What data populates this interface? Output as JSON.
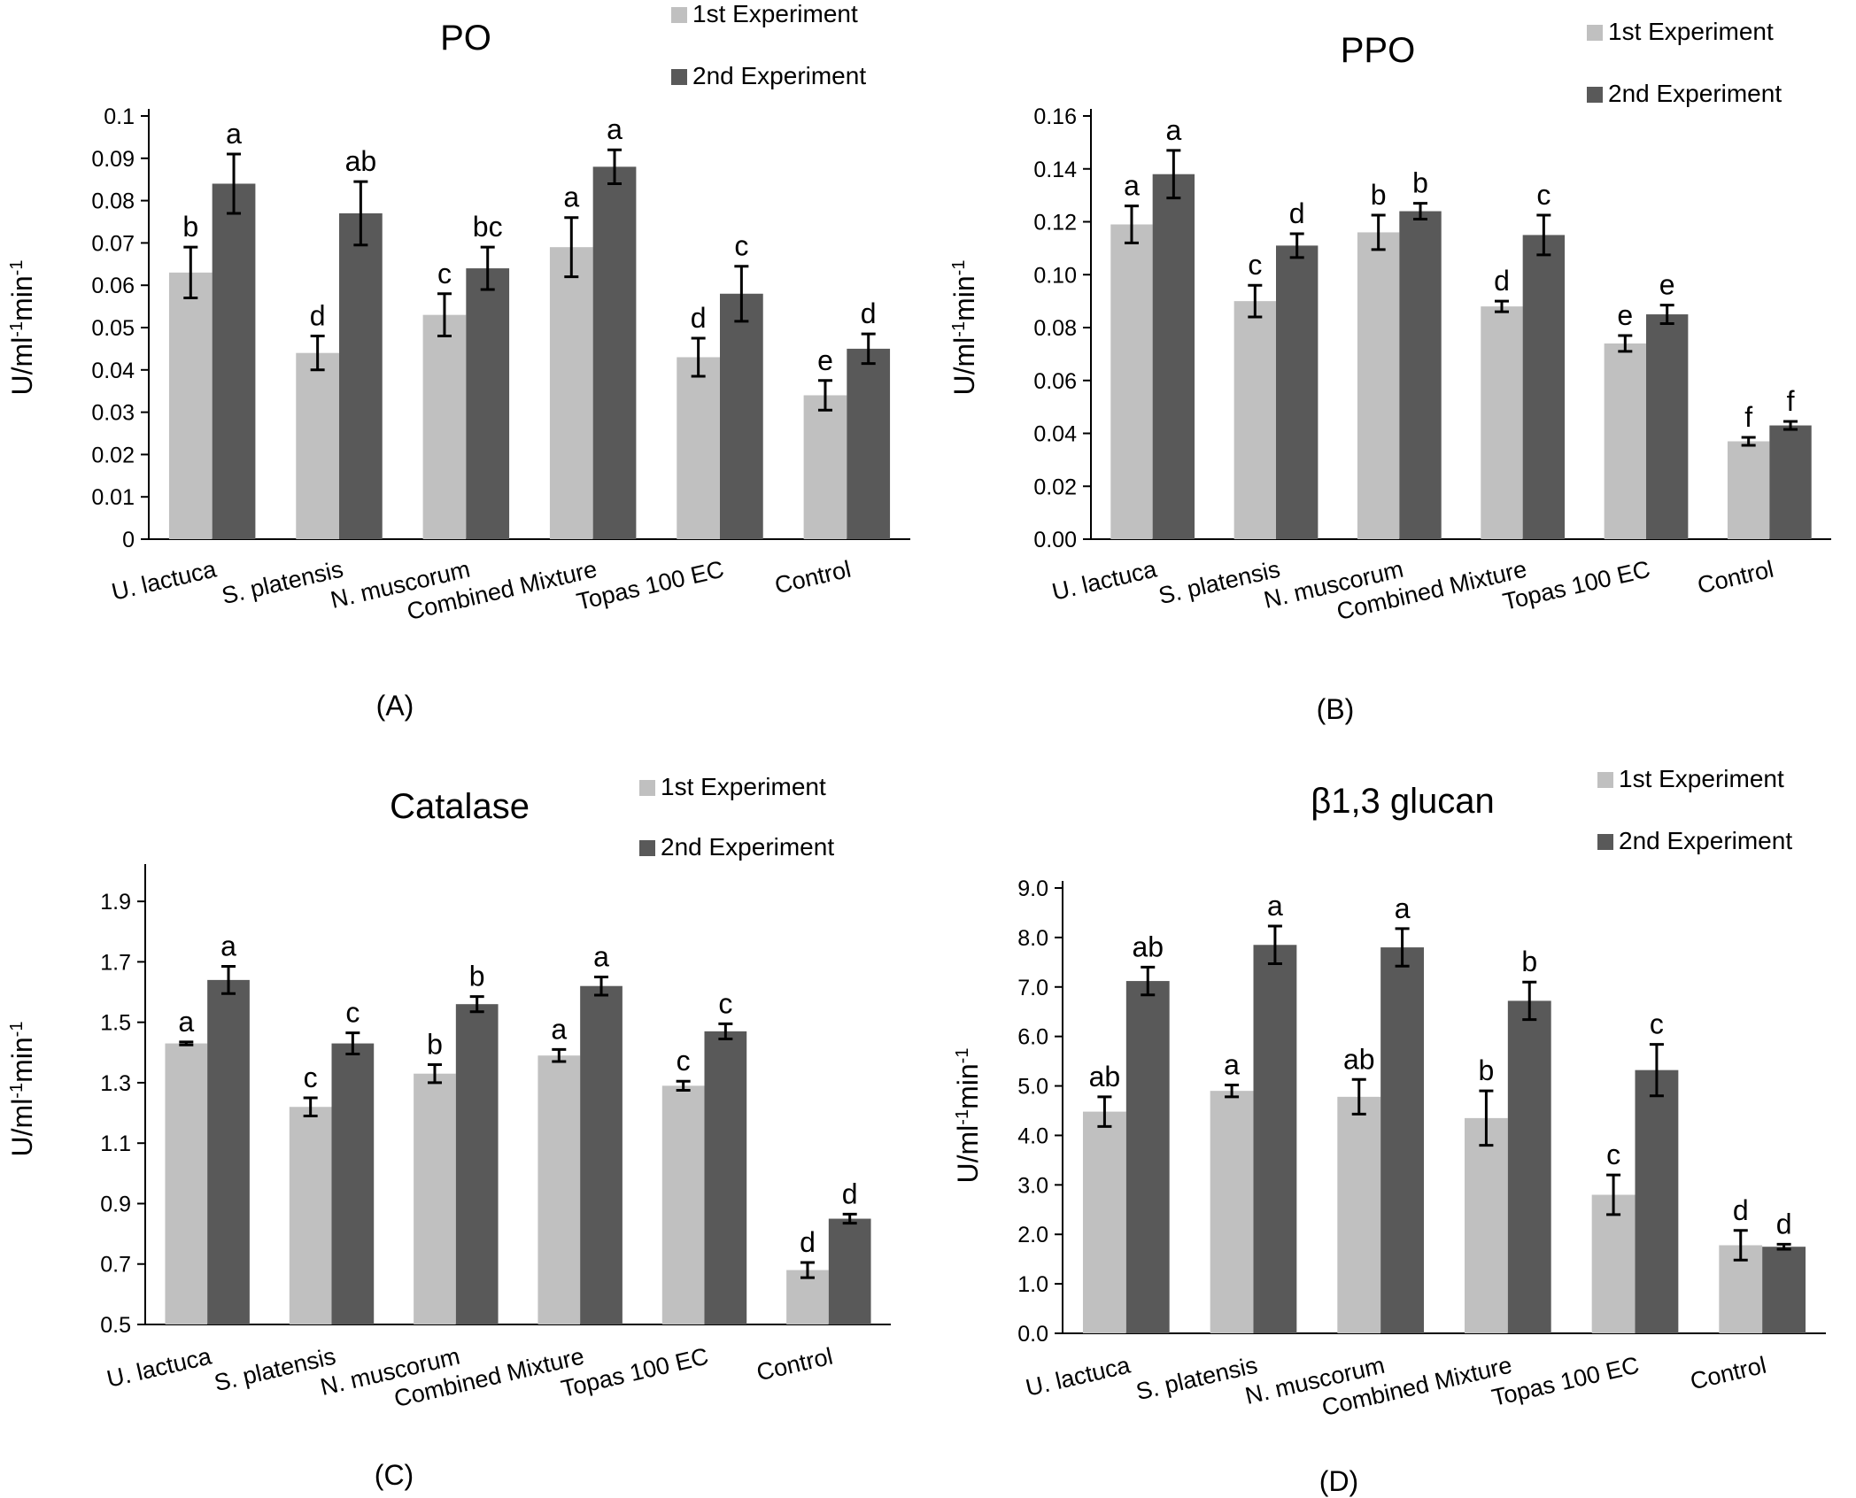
{
  "legend": {
    "series1": "1st Experiment",
    "series2": "2nd Experiment"
  },
  "colors": {
    "series1": "#c0c0c0",
    "series2": "#595959",
    "axis": "#000000"
  },
  "ylabel": {
    "base1": "U/ml",
    "sup1": "-1",
    "base2": "min",
    "sup2": "-1"
  },
  "chart_data": [
    {
      "type": "bar",
      "panel_label": "(A)",
      "title": "PO",
      "xlabel": "",
      "ylabel": "U/ml-1min-1",
      "categories": [
        "U. lactuca",
        "S. platensis",
        "N. muscorum",
        "Combined Mixture",
        "Topas 100 EC",
        "Control"
      ],
      "yticks": [
        "0",
        "0.01",
        "0.02",
        "0.03",
        "0.04",
        "0.05",
        "0.06",
        "0.07",
        "0.08",
        "0.09",
        "0.1"
      ],
      "ylim": [
        0,
        0.1
      ],
      "series": [
        {
          "name": "1st Experiment",
          "values": [
            0.063,
            0.044,
            0.053,
            0.069,
            0.043,
            0.034
          ],
          "errors": [
            0.006,
            0.004,
            0.005,
            0.007,
            0.0045,
            0.0035
          ],
          "letters": [
            "b",
            "d",
            "c",
            "a",
            "d",
            "e"
          ]
        },
        {
          "name": "2nd Experiment",
          "values": [
            0.084,
            0.077,
            0.064,
            0.088,
            0.058,
            0.045
          ],
          "errors": [
            0.007,
            0.0075,
            0.005,
            0.004,
            0.0065,
            0.0035
          ],
          "letters": [
            "a",
            "ab",
            "bc",
            "a",
            "c",
            "d"
          ]
        }
      ]
    },
    {
      "type": "bar",
      "panel_label": "(B)",
      "title": "PPO",
      "xlabel": "",
      "ylabel": "U/ml-1min-1",
      "categories": [
        "U. lactuca",
        "S. platensis",
        "N. muscorum",
        "Combined Mixture",
        "Topas 100 EC",
        "Control"
      ],
      "yticks": [
        "0.00",
        "0.02",
        "0.04",
        "0.06",
        "0.08",
        "0.10",
        "0.12",
        "0.14",
        "0.16"
      ],
      "ylim": [
        0,
        0.16
      ],
      "series": [
        {
          "name": "1st Experiment",
          "values": [
            0.119,
            0.09,
            0.116,
            0.088,
            0.074,
            0.037
          ],
          "errors": [
            0.007,
            0.006,
            0.0065,
            0.002,
            0.003,
            0.0015
          ],
          "letters": [
            "a",
            "c",
            "b",
            "d",
            "e",
            "f"
          ]
        },
        {
          "name": "2nd Experiment",
          "values": [
            0.138,
            0.111,
            0.124,
            0.115,
            0.085,
            0.043
          ],
          "errors": [
            0.009,
            0.0045,
            0.003,
            0.0075,
            0.0035,
            0.0015
          ],
          "letters": [
            "a",
            "d",
            "b",
            "c",
            "e",
            "f"
          ]
        }
      ]
    },
    {
      "type": "bar",
      "panel_label": "(C)",
      "title": "Catalase",
      "xlabel": "",
      "ylabel": "U/ml-1min-1",
      "categories": [
        "U. lactuca",
        "S. platensis",
        "N. muscorum",
        "Combined Mixture",
        "Topas 100 EC",
        "Control"
      ],
      "yticks": [
        "0.5",
        "0.7",
        "0.9",
        "1.1",
        "1.3",
        "1.5",
        "1.7",
        "1.9"
      ],
      "ylim": [
        0.5,
        2.0
      ],
      "series": [
        {
          "name": "1st Experiment",
          "values": [
            1.43,
            1.22,
            1.33,
            1.39,
            1.29,
            0.68
          ],
          "errors": [
            0.005,
            0.03,
            0.03,
            0.02,
            0.015,
            0.025
          ],
          "letters": [
            "a",
            "c",
            "b",
            "a",
            "c",
            "d"
          ]
        },
        {
          "name": "2nd Experiment",
          "values": [
            1.64,
            1.43,
            1.56,
            1.62,
            1.47,
            0.85
          ],
          "errors": [
            0.045,
            0.035,
            0.025,
            0.03,
            0.025,
            0.015
          ],
          "letters": [
            "a",
            "c",
            "b",
            "a",
            "c",
            "d"
          ]
        }
      ]
    },
    {
      "type": "bar",
      "panel_label": "(D)",
      "title": "β1,3 glucan",
      "xlabel": "",
      "ylabel": "U/ml-1min-1",
      "categories": [
        "U. lactuca",
        "S. platensis",
        "N. muscorum",
        "Combined Mixture",
        "Topas 100 EC",
        "Control"
      ],
      "yticks": [
        "0.0",
        "1.0",
        "2.0",
        "3.0",
        "4.0",
        "5.0",
        "6.0",
        "7.0",
        "8.0",
        "9.0"
      ],
      "ylim": [
        0,
        9
      ],
      "series": [
        {
          "name": "1st Experiment",
          "values": [
            4.48,
            4.9,
            4.78,
            4.35,
            2.8,
            1.78
          ],
          "errors": [
            0.3,
            0.12,
            0.35,
            0.55,
            0.4,
            0.3
          ],
          "letters": [
            "ab",
            "a",
            "ab",
            "b",
            "c",
            "d"
          ]
        },
        {
          "name": "2nd Experiment",
          "values": [
            7.12,
            7.85,
            7.8,
            6.72,
            5.32,
            1.75
          ],
          "errors": [
            0.28,
            0.38,
            0.38,
            0.38,
            0.52,
            0.05
          ],
          "letters": [
            "ab",
            "a",
            "a",
            "b",
            "c",
            "d"
          ]
        }
      ]
    }
  ]
}
